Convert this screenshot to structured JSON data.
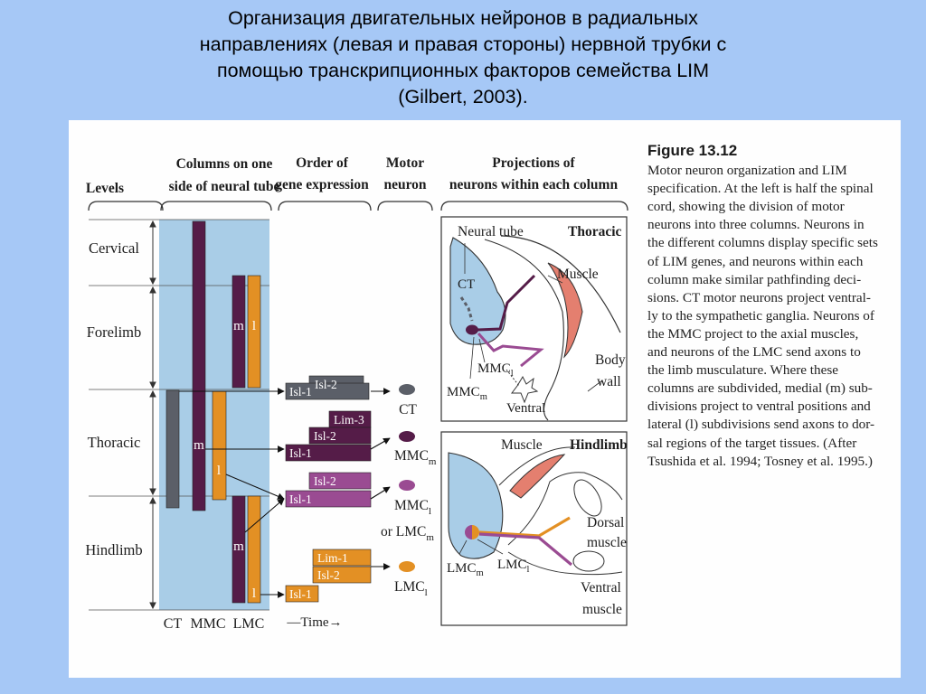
{
  "title": {
    "lines": [
      "Организация двигательных нейронов в радиальных",
      "направлениях (левая и правая стороны) нервной трубки с",
      "помощью транскрипционных факторов семейства LIM",
      "(Gilbert, 2003)."
    ]
  },
  "figure": {
    "heading": "Figure 13.12",
    "caption_lines": [
      "Motor neuron organization and LIM",
      "specification. At the left is half the spinal",
      "cord, showing the division of motor",
      "neurons into three columns. Neurons in",
      "the different columns display specific sets",
      "of LIM genes, and neurons within each",
      "column make similar pathfinding deci-",
      "sions. CT motor neurons project ventral-",
      "ly to the sympathetic ganglia. Neurons of",
      "the MMC project to the axial muscles,",
      "and neurons of the LMC send axons to",
      "the limb musculature. Where these",
      "columns are subdivided, medial (m) sub-",
      "divisions project to ventral positions and",
      "lateral (l) subdivisions send axons to dor-",
      "sal regions of the target tissues. (After",
      "Tsushida et al. 1994; Tosney et al. 1995.)"
    ]
  },
  "headers": {
    "levels": "Levels",
    "columns_1": "Columns on one",
    "columns_2": "side of neural tube",
    "order_1": "Order of",
    "order_2": "gene expression",
    "motor_1": "Motor",
    "motor_2": "neuron",
    "proj_1": "Projections of",
    "proj_2": "neurons within each column"
  },
  "levels": [
    "Cervical",
    "Forelimb",
    "Thoracic",
    "Hindlimb"
  ],
  "column_labels": {
    "ct": "CT",
    "mmc": "MMC",
    "lmc": "LMC",
    "time": "—Time→"
  },
  "subdivision_labels": {
    "m": "m",
    "l": "l"
  },
  "genes": {
    "ct": [
      "Isl-2",
      "Isl-1"
    ],
    "mmcm": [
      "Lim-3",
      "Isl-2",
      "Isl-1"
    ],
    "mmcl": [
      "Isl-2",
      "Isl-1"
    ],
    "lmcl": [
      "Lim-1",
      "Isl-2",
      "Isl-1"
    ]
  },
  "neurons": {
    "ct": "CT",
    "mmcm_base": "MMC",
    "mmcm_sub": "m",
    "mmcl_base": "MMC",
    "mmcl_sub": "l",
    "or_lmcm_prefix": "or LMC",
    "or_lmcm_sub": "m",
    "lmcl_base": "LMC",
    "lmcl_sub": "l"
  },
  "thoracic_panel": {
    "title": "Thoracic",
    "neural_tube": "Neural tube",
    "ct": "CT",
    "muscle": "Muscle",
    "body_wall_1": "Body",
    "body_wall_2": "wall",
    "mmcl_base": "MMC",
    "mmcl_sub": "l",
    "mmcm_base": "MMC",
    "mmcm_sub": "m",
    "ventral": "Ventral"
  },
  "hindlimb_panel": {
    "title": "Hindlimb",
    "muscle": "Muscle",
    "dorsal_1": "Dorsal",
    "dorsal_2": "muscle",
    "ventral_1": "Ventral",
    "ventral_2": "muscle",
    "lmcm_base": "LMC",
    "lmcm_sub": "m",
    "lmcl_base": "LMC",
    "lmcl_sub": "l"
  },
  "colors": {
    "ct": "#5b5f68",
    "mmc_m": "#551c48",
    "mmc_l": "#9a4b92",
    "lmc_l": "#e39024",
    "tube": "#a9cde7",
    "muscle": "#e47f6f",
    "slide_bg": "#a6c8f6"
  }
}
